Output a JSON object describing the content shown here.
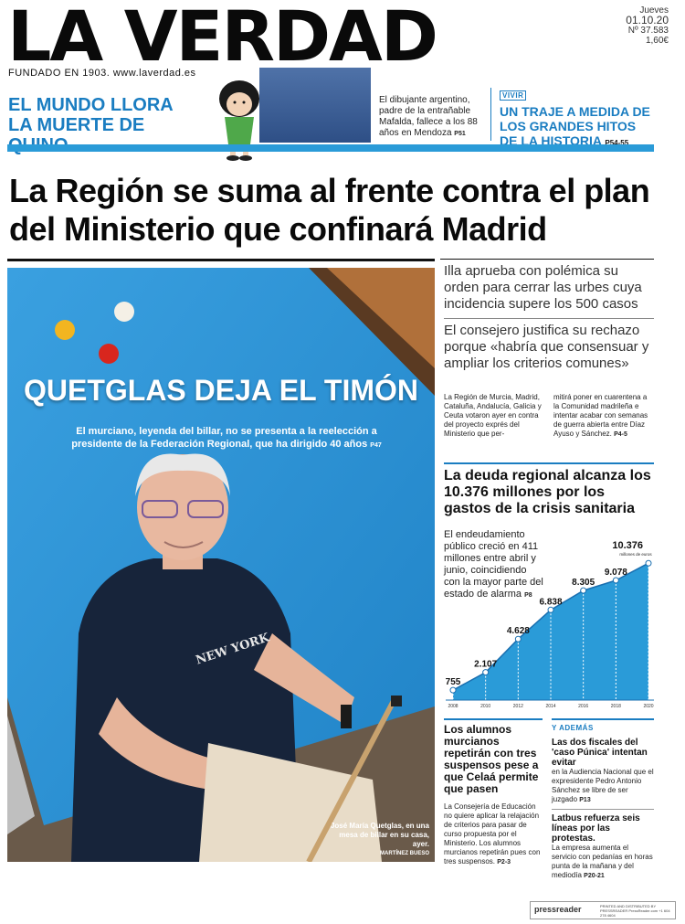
{
  "masthead": {
    "title": "LA VERDAD",
    "founded": "FUNDADO EN 1903. www.laverdad.es",
    "day": "Jueves",
    "date": "01.10.20",
    "issue": "Nº 37.583",
    "price": "1,60€"
  },
  "teasers": {
    "left_headline": "EL MUNDO LLORA LA MUERTE DE QUINO",
    "middle_text": "El dibujante argentino, padre de la entrañable Mafalda, fallece a los 88 años en Mendoza",
    "middle_page": "P51",
    "right_tag": "VIVIR",
    "right_headline": "UN TRAJE A MEDIDA DE LOS GRANDES HITOS DE LA HISTORIA",
    "right_page": "P54-55"
  },
  "main": {
    "headline": "La Región se suma al frente contra el plan del Ministerio que confinará Madrid",
    "right_deck1": "Illa aprueba con polémica su orden para cerrar las urbes cuya incidencia supere los 500 casos",
    "right_deck2": "El consejero justifica su rechazo porque «habría que consensuar y ampliar los criterios comunes»",
    "body_col1": "La Región de Murcia, Madrid, Cataluña, Andalucía, Galicia y Ceuta votaron ayer en contra del proyecto exprés del Ministerio que per-",
    "body_col2": "mitirá poner en cuarentena a la Comunidad madrileña e intentar acabar con semanas de guerra abierta entre Díaz Ayuso y Sánchez.",
    "body_page": "P4-5"
  },
  "photo": {
    "title": "QUETGLAS DEJA EL TIMÓN",
    "subtitle": "El murciano, leyenda del billar, no se presenta a la reelección a presidente de la Federación Regional, que ha dirigido 40 años",
    "subtitle_page": "P47",
    "caption": "José María Quetglas, en una mesa de billar en su casa, ayer.",
    "credit": "MARTÍNEZ BUESO",
    "shirt_text": "NEW YORK"
  },
  "debt": {
    "headline": "La deuda regional alcanza los 10.376 millones por los gastos de la crisis sanitaria",
    "text": "El endeudamiento público creció en 411 millones entre abril y junio, coincidiendo con la mayor parte del estado de alarma",
    "page": "P8",
    "unit_label": "millones de euros"
  },
  "chart_data": {
    "type": "area",
    "title": "",
    "xlabel": "",
    "ylabel": "",
    "x": [
      "2008",
      "2010",
      "2012",
      "2014",
      "2016",
      "2018",
      "2020"
    ],
    "values": [
      755,
      2107,
      4628,
      6838,
      8305,
      9078,
      10376
    ],
    "value_labels": [
      "755",
      "2.107",
      "4.628",
      "6.838",
      "8.305",
      "9.078",
      "10.376"
    ],
    "unit": "millones de euros",
    "ylim": [
      0,
      11500
    ],
    "fill_color": "#2a9bd8",
    "grid": false
  },
  "bottom": {
    "left_headline": "Los alumnos murcianos repetirán con tres suspensos pese a que Celaá permite que pasen",
    "left_body": "La Consejería de Educación no quiere aplicar la relajación de criterios para pasar de curso propuesta por el Ministerio. Los alumnos murcianos repetirán pues con tres suspensos.",
    "left_page": "P2-3",
    "right_tag": "Y ADEMÁS",
    "right_item1_headline": "Las dos fiscales del 'caso Púnica' intentan evitar",
    "right_item1_body": "en la Audiencia Nacional que el expresidente Pedro Antonio Sánchez se libre de ser juzgado",
    "right_item1_page": "P13",
    "right_item2_headline": "Latbus refuerza seis líneas por las protestas.",
    "right_item2_body": "La empresa aumenta el servicio con pedanías en horas punta de la mañana y del mediodía",
    "right_item2_page": "P20-21"
  },
  "footer": {
    "brand": "pressreader",
    "small": "PRINTED AND DISTRIBUTED BY PRESSREADER PressReader.com +1 604 278 4604"
  },
  "colors": {
    "accent": "#1a7dc1",
    "bar": "#2a9bd8"
  }
}
